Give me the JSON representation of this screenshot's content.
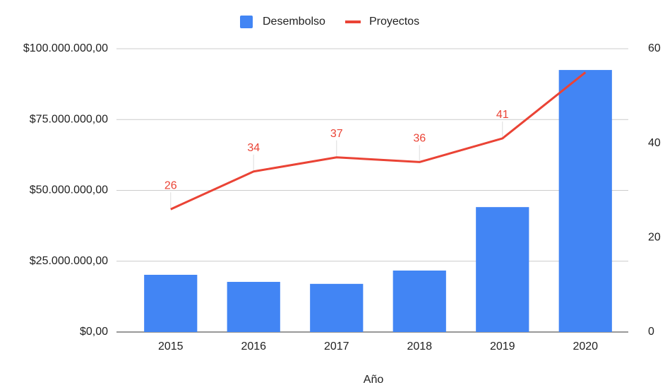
{
  "chart_data": {
    "type": "bar_line",
    "categories": [
      "2015",
      "2016",
      "2017",
      "2018",
      "2019",
      "2020"
    ],
    "x_label": "Año",
    "series": [
      {
        "name": "Desembolso",
        "type": "bar",
        "color": "#4285f4",
        "values": [
          20200000,
          17700000,
          17000000,
          21700000,
          44100000,
          92500000
        ]
      },
      {
        "name": "Proyectos",
        "type": "line",
        "axis": "y2",
        "color": "#ea4335",
        "values": [
          26,
          34,
          37,
          36,
          41,
          55
        ],
        "value_labels": [
          "26",
          "34",
          "37",
          "36",
          "41",
          null
        ]
      }
    ],
    "ylim": [
      0,
      100000000
    ],
    "yticks": [
      {
        "value": 0,
        "label": "$0,00"
      },
      {
        "value": 25000000,
        "label": "$25.000.000,00"
      },
      {
        "value": 50000000,
        "label": "$50.000.000,00"
      },
      {
        "value": 75000000,
        "label": "$75.000.000,00"
      },
      {
        "value": 100000000,
        "label": "$100.000.000,00"
      }
    ],
    "y2lim": [
      0,
      60
    ],
    "y2ticks": [
      0,
      20,
      40,
      60
    ],
    "grid": true,
    "legend": "top"
  }
}
